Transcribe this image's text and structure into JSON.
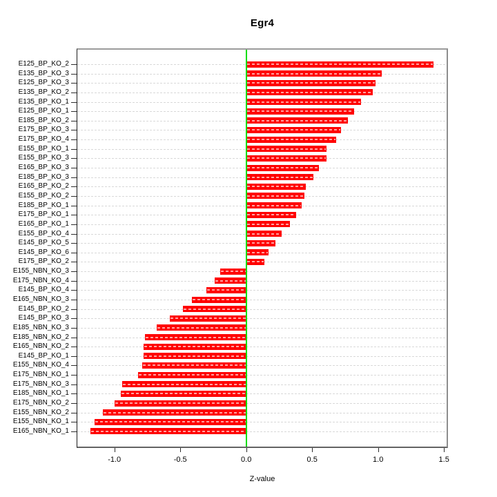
{
  "figure": {
    "title": "Egr4",
    "xlabel": "Z-value"
  },
  "chart_data": {
    "type": "bar",
    "orientation": "horizontal",
    "title": "Egr4",
    "xlabel": "Z-value",
    "ylabel": "",
    "legend": null,
    "grid": "dashed horizontal gridline per bar row",
    "xlim": [
      -1.28,
      1.52
    ],
    "xticks": [
      -1.0,
      -0.5,
      0.0,
      0.5,
      1.0,
      1.5
    ],
    "xtick_labels": [
      "-1.0",
      "-0.5",
      "0.0",
      "0.5",
      "1.0",
      "1.5"
    ],
    "zero_reference_line": 0.0,
    "categories": [
      "E125_BP_KO_2",
      "E135_BP_KO_3",
      "E125_BP_KO_3",
      "E135_BP_KO_2",
      "E135_BP_KO_1",
      "E125_BP_KO_1",
      "E185_BP_KO_2",
      "E175_BP_KO_3",
      "E175_BP_KO_4",
      "E155_BP_KO_1",
      "E155_BP_KO_3",
      "E165_BP_KO_3",
      "E185_BP_KO_3",
      "E165_BP_KO_2",
      "E155_BP_KO_2",
      "E185_BP_KO_1",
      "E175_BP_KO_1",
      "E165_BP_KO_1",
      "E155_BP_KO_4",
      "E145_BP_KO_5",
      "E145_BP_KO_6",
      "E175_BP_KO_2",
      "E155_NBN_KO_3",
      "E175_NBN_KO_4",
      "E145_BP_KO_4",
      "E165_NBN_KO_3",
      "E145_BP_KO_2",
      "E145_BP_KO_3",
      "E185_NBN_KO_3",
      "E185_NBN_KO_2",
      "E165_NBN_KO_2",
      "E145_BP_KO_1",
      "E155_NBN_KO_4",
      "E175_NBN_KO_1",
      "E175_NBN_KO_3",
      "E185_NBN_KO_1",
      "E175_NBN_KO_2",
      "E155_NBN_KO_2",
      "E155_NBN_KO_1",
      "E165_NBN_KO_1"
    ],
    "values": [
      1.42,
      1.03,
      0.98,
      0.96,
      0.87,
      0.82,
      0.77,
      0.72,
      0.68,
      0.61,
      0.61,
      0.55,
      0.51,
      0.45,
      0.44,
      0.42,
      0.38,
      0.33,
      0.27,
      0.22,
      0.17,
      0.14,
      -0.2,
      -0.24,
      -0.3,
      -0.41,
      -0.48,
      -0.58,
      -0.68,
      -0.77,
      -0.78,
      -0.78,
      -0.79,
      -0.82,
      -0.94,
      -0.95,
      -1.0,
      -1.09,
      -1.15,
      -1.18
    ],
    "colors": {
      "bar": "#ff0000",
      "bar_inner_dash": "#ffa3a3",
      "gridline": "#d8d8d8",
      "zero_line": "#00dd00",
      "box_border": "#8d8d8d",
      "axis": "#000000",
      "background": "#ffffff"
    }
  }
}
